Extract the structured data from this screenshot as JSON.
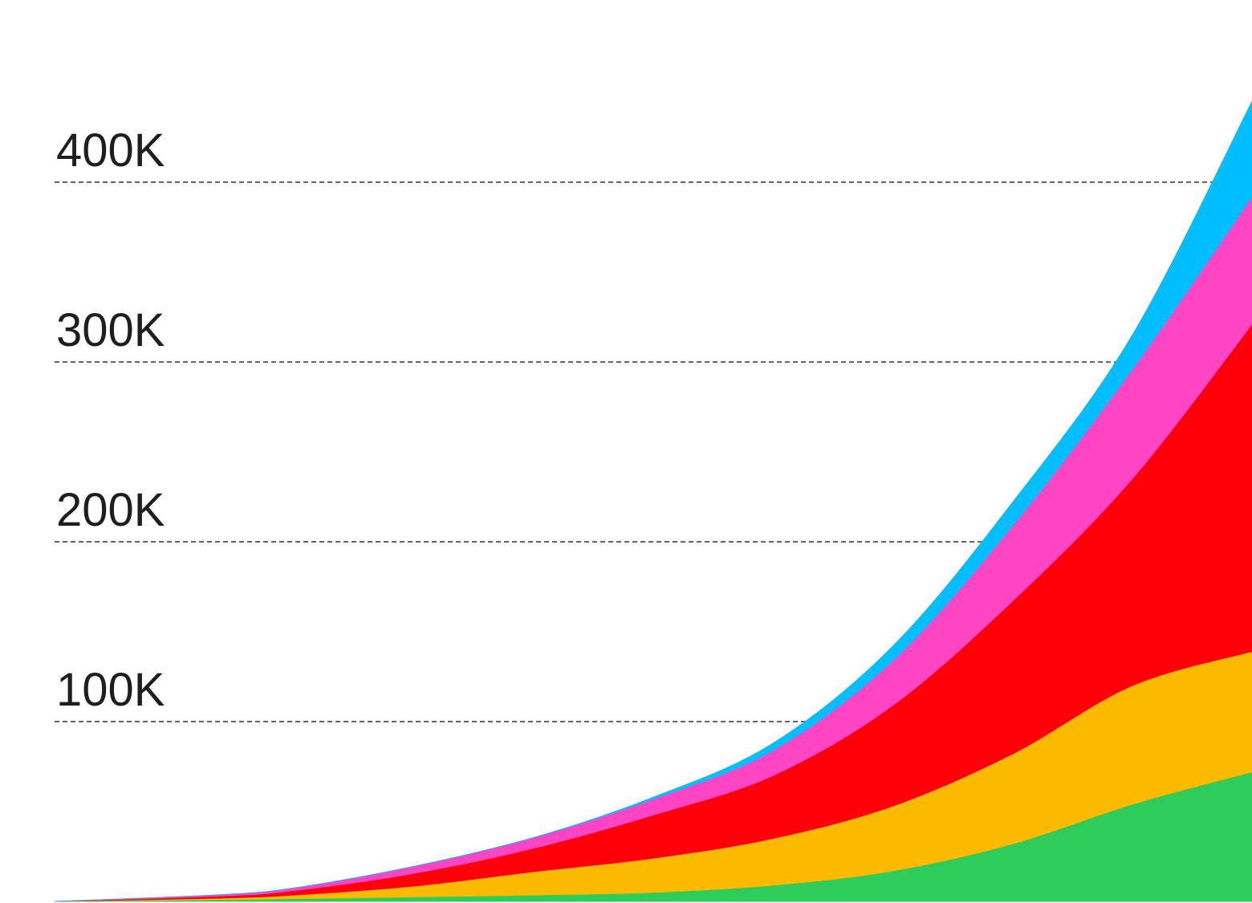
{
  "chart_data": {
    "type": "area",
    "stacked": true,
    "title": "",
    "xlabel": "",
    "ylabel": "",
    "ylim": [
      0,
      400000
    ],
    "grid": true,
    "y_ticks": [
      {
        "value": 100000,
        "label": "100K"
      },
      {
        "value": 200000,
        "label": "200K"
      },
      {
        "value": 300000,
        "label": "300K"
      },
      {
        "value": 400000,
        "label": "400K"
      }
    ],
    "x": [
      0,
      0.14,
      0.2,
      0.3,
      0.4,
      0.5,
      0.6,
      0.7,
      0.8,
      0.9,
      1.0
    ],
    "series": [
      {
        "color": "#2ecc5a",
        "values": [
          0,
          1000,
          1500,
          2500,
          3500,
          5000,
          9000,
          17000,
          32000,
          54000,
          72000
        ]
      },
      {
        "color": "#fdbb00",
        "values": [
          0,
          800,
          2000,
          6000,
          13000,
          19000,
          26000,
          36000,
          50000,
          66000,
          67000
        ]
      },
      {
        "color": "#ff0008",
        "values": [
          0,
          1200,
          2500,
          7000,
          13000,
          24000,
          35000,
          56000,
          85000,
          115000,
          182000
        ]
      },
      {
        "color": "#ff44c4",
        "values": [
          0,
          800,
          1500,
          4000,
          6000,
          9000,
          14000,
          25000,
          42000,
          61000,
          71000
        ]
      },
      {
        "color": "#00bfff",
        "values": [
          0,
          0,
          0,
          0,
          0,
          1000,
          4000,
          8000,
          13000,
          19000,
          53000
        ]
      }
    ]
  }
}
